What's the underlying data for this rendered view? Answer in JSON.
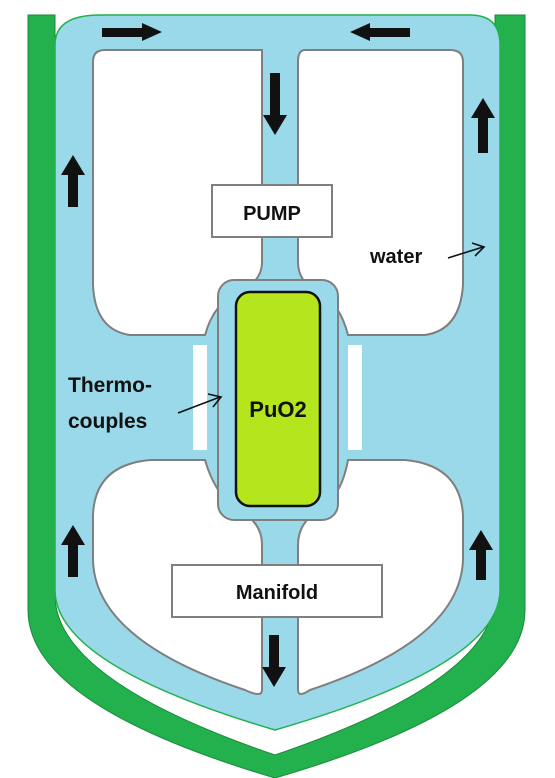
{
  "labels": {
    "pump": "PUMP",
    "core": "PuO2",
    "manifold": "Manifold",
    "water": "water",
    "thermo_line1": "Thermo-",
    "thermo_line2": "couples"
  },
  "colors": {
    "casing": "#22b14c",
    "water": "#99d9ea",
    "core": "#b5e61d",
    "outline": "#7f7f7f",
    "background": "#ffffff",
    "arrow": "#111111"
  },
  "icons": {
    "flow_arrow": "arrow-icon",
    "pointer": "pointer-arrow-icon"
  }
}
